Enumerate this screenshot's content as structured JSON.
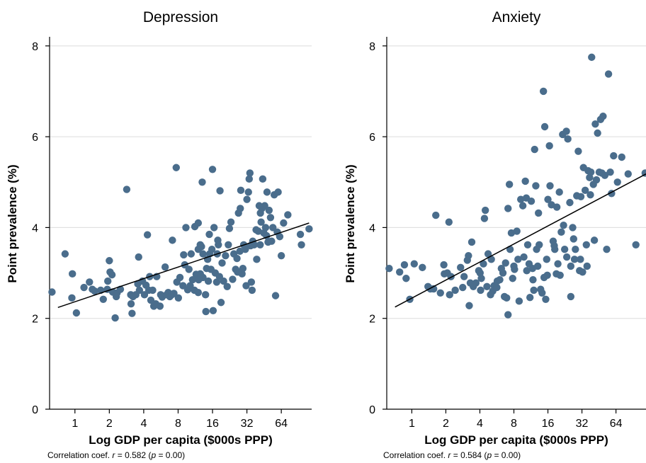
{
  "chart_data": [
    {
      "type": "scatter",
      "title": "Depression",
      "xlabel": "Log GDP per capita ($000s PPP)",
      "ylabel": "Point prevalence (%)",
      "x_scale": "log2",
      "xlim": [
        0.6,
        118
      ],
      "ylim": [
        0,
        8.2
      ],
      "x_ticks": [
        1,
        2,
        4,
        8,
        16,
        32,
        64
      ],
      "x_tick_labels": [
        "1",
        "2",
        "4",
        "8",
        "16",
        "32",
        "64"
      ],
      "y_ticks": [
        0,
        2,
        4,
        6,
        8
      ],
      "y_tick_labels": [
        "0",
        "2",
        "4",
        "6",
        "8"
      ],
      "grid": true,
      "trendline": {
        "x": [
          0.71,
          112
        ],
        "y": [
          2.24,
          4.1
        ]
      },
      "footnote": {
        "prefix": "Correlation coef.",
        "r_symbol": "r",
        "r_value": " = 0.582 (",
        "p_symbol": "p",
        "p_value": " = 0.00)"
      },
      "points": [
        [
          0.63,
          2.58
        ],
        [
          0.82,
          3.42
        ],
        [
          0.95,
          2.98
        ],
        [
          0.94,
          2.45
        ],
        [
          1.03,
          2.12
        ],
        [
          1.2,
          2.68
        ],
        [
          1.34,
          2.8
        ],
        [
          1.42,
          2.64
        ],
        [
          1.49,
          2.6
        ],
        [
          1.68,
          2.62
        ],
        [
          1.77,
          2.42
        ],
        [
          1.92,
          2.64
        ],
        [
          1.94,
          2.82
        ],
        [
          2.0,
          3.27
        ],
        [
          2.03,
          3.02
        ],
        [
          2.11,
          2.96
        ],
        [
          2.14,
          2.58
        ],
        [
          2.25,
          2.01
        ],
        [
          2.3,
          2.48
        ],
        [
          2.34,
          2.56
        ],
        [
          2.5,
          2.64
        ],
        [
          2.84,
          4.84
        ],
        [
          3.08,
          2.52
        ],
        [
          3.1,
          2.32
        ],
        [
          3.16,
          2.11
        ],
        [
          3.22,
          2.48
        ],
        [
          3.41,
          2.52
        ],
        [
          3.55,
          2.76
        ],
        [
          3.61,
          3.35
        ],
        [
          3.67,
          2.62
        ],
        [
          3.9,
          2.82
        ],
        [
          4.06,
          2.52
        ],
        [
          4.19,
          2.73
        ],
        [
          4.31,
          3.84
        ],
        [
          4.43,
          2.62
        ],
        [
          4.51,
          2.92
        ],
        [
          4.62,
          2.4
        ],
        [
          4.79,
          2.62
        ],
        [
          4.9,
          2.27
        ],
        [
          5.1,
          2.32
        ],
        [
          5.2,
          2.92
        ],
        [
          5.55,
          2.27
        ],
        [
          5.63,
          2.52
        ],
        [
          5.8,
          2.47
        ],
        [
          6.16,
          3.13
        ],
        [
          6.35,
          2.52
        ],
        [
          6.55,
          2.57
        ],
        [
          6.77,
          2.48
        ],
        [
          7.04,
          2.52
        ],
        [
          7.13,
          3.72
        ],
        [
          7.35,
          2.55
        ],
        [
          7.7,
          5.32
        ],
        [
          7.8,
          2.8
        ],
        [
          8.04,
          2.45
        ],
        [
          8.3,
          2.9
        ],
        [
          8.82,
          2.72
        ],
        [
          8.95,
          3.4
        ],
        [
          9.14,
          3.18
        ],
        [
          9.36,
          4.0
        ],
        [
          9.95,
          3.08
        ],
        [
          10.2,
          2.72
        ],
        [
          10.4,
          3.42
        ],
        [
          11.2,
          4.02
        ],
        [
          11.5,
          2.97
        ],
        [
          12.0,
          2.57
        ],
        [
          12.0,
          3.52
        ],
        [
          12.0,
          4.1
        ],
        [
          12.5,
          3.62
        ],
        [
          12.5,
          2.98
        ],
        [
          12.8,
          3.58
        ],
        [
          13.2,
          3.42
        ],
        [
          13.0,
          5.0
        ],
        [
          13.9,
          2.52
        ],
        [
          14.2,
          3.1
        ],
        [
          14.5,
          3.3
        ],
        [
          14.7,
          2.82
        ],
        [
          15.1,
          3.42
        ],
        [
          15.5,
          3.08
        ],
        [
          15.8,
          3.52
        ],
        [
          16.0,
          5.28
        ],
        [
          16.5,
          4.0
        ],
        [
          16.9,
          3.0
        ],
        [
          17.4,
          2.8
        ],
        [
          17.6,
          3.42
        ],
        [
          18.0,
          3.62
        ],
        [
          18.4,
          2.92
        ],
        [
          18.6,
          4.81
        ],
        [
          19.4,
          3.22
        ],
        [
          20.0,
          2.82
        ],
        [
          20.8,
          3.38
        ],
        [
          21.5,
          2.7
        ],
        [
          22.0,
          3.62
        ],
        [
          22.5,
          3.98
        ],
        [
          23.2,
          4.12
        ],
        [
          24.0,
          2.86
        ],
        [
          24.6,
          3.42
        ],
        [
          25.5,
          3.08
        ],
        [
          26.2,
          3.32
        ],
        [
          27.0,
          4.32
        ],
        [
          27.8,
          3.48
        ],
        [
          28.0,
          4.42
        ],
        [
          28.3,
          4.82
        ],
        [
          29.0,
          2.98
        ],
        [
          29.5,
          3.1
        ],
        [
          30.0,
          3.62
        ],
        [
          31.0,
          3.52
        ],
        [
          31.5,
          2.72
        ],
        [
          32.0,
          4.62
        ],
        [
          33.0,
          4.78
        ],
        [
          33.5,
          5.07
        ],
        [
          34.0,
          5.2
        ],
        [
          35.0,
          2.8
        ],
        [
          35.5,
          2.62
        ],
        [
          36.0,
          3.7
        ],
        [
          37.0,
          3.62
        ],
        [
          38.5,
          3.95
        ],
        [
          39.0,
          3.3
        ],
        [
          40.2,
          3.92
        ],
        [
          41.0,
          4.48
        ],
        [
          41.8,
          3.62
        ],
        [
          42.6,
          4.12
        ],
        [
          43.3,
          4.42
        ],
        [
          44.0,
          5.07
        ],
        [
          45.0,
          3.88
        ],
        [
          45.8,
          4.48
        ],
        [
          46.6,
          4.0
        ],
        [
          47.5,
          3.82
        ],
        [
          48.0,
          4.78
        ],
        [
          49.0,
          3.68
        ],
        [
          50.0,
          4.38
        ],
        [
          51.5,
          4.22
        ],
        [
          52.6,
          3.7
        ],
        [
          54.0,
          4.0
        ],
        [
          55.5,
          4.72
        ],
        [
          57.0,
          2.5
        ],
        [
          59.0,
          3.9
        ],
        [
          60.0,
          4.78
        ],
        [
          62.0,
          3.8
        ],
        [
          64.0,
          3.38
        ],
        [
          67.0,
          4.1
        ],
        [
          73.0,
          4.28
        ],
        [
          94.0,
          3.85
        ],
        [
          96.0,
          3.62
        ],
        [
          112.0,
          3.97
        ],
        [
          42.0,
          4.32
        ],
        [
          34.5,
          3.6
        ],
        [
          26.5,
          3.02
        ],
        [
          19.0,
          2.35
        ],
        [
          14.0,
          2.15
        ],
        [
          16.2,
          2.17
        ],
        [
          13.2,
          2.9
        ],
        [
          11.1,
          2.62
        ],
        [
          9.7,
          2.63
        ],
        [
          10.7,
          2.85
        ],
        [
          12.1,
          2.85
        ],
        [
          15.0,
          3.85
        ],
        [
          17.8,
          3.72
        ]
      ]
    },
    {
      "type": "scatter",
      "title": "Anxiety",
      "xlabel": "Log GDP per capita ($000s PPP)",
      "ylabel": "Point prevalence (%)",
      "x_scale": "log2",
      "xlim": [
        0.6,
        118
      ],
      "ylim": [
        0,
        8.2
      ],
      "x_ticks": [
        1,
        2,
        4,
        8,
        16,
        32,
        64
      ],
      "x_tick_labels": [
        "1",
        "2",
        "4",
        "8",
        "16",
        "32",
        "64"
      ],
      "y_ticks": [
        0,
        2,
        4,
        6,
        8
      ],
      "y_tick_labels": [
        "0",
        "2",
        "4",
        "6",
        "8"
      ],
      "grid": true,
      "trendline": {
        "x": [
          0.71,
          118
        ],
        "y": [
          2.25,
          5.18
        ]
      },
      "footnote": {
        "prefix": "Correlation coef.",
        "r_symbol": "r",
        "r_value": " = 0.584 (",
        "p_symbol": "p",
        "p_value": " = 0.00)"
      },
      "points": [
        [
          0.63,
          3.1
        ],
        [
          0.78,
          3.02
        ],
        [
          0.86,
          3.18
        ],
        [
          0.89,
          2.88
        ],
        [
          0.96,
          2.42
        ],
        [
          1.05,
          3.2
        ],
        [
          1.24,
          3.12
        ],
        [
          1.39,
          2.7
        ],
        [
          1.46,
          2.65
        ],
        [
          1.56,
          2.65
        ],
        [
          1.63,
          4.27
        ],
        [
          1.79,
          2.56
        ],
        [
          1.92,
          3.18
        ],
        [
          1.94,
          2.98
        ],
        [
          2.06,
          3.0
        ],
        [
          2.13,
          4.12
        ],
        [
          2.16,
          2.52
        ],
        [
          2.22,
          2.92
        ],
        [
          2.42,
          2.62
        ],
        [
          2.7,
          3.12
        ],
        [
          2.82,
          2.68
        ],
        [
          2.9,
          2.92
        ],
        [
          3.1,
          3.28
        ],
        [
          3.17,
          3.38
        ],
        [
          3.22,
          2.28
        ],
        [
          3.29,
          2.78
        ],
        [
          3.39,
          3.68
        ],
        [
          3.5,
          2.7
        ],
        [
          3.69,
          2.78
        ],
        [
          3.91,
          3.05
        ],
        [
          4.02,
          3.0
        ],
        [
          4.06,
          2.62
        ],
        [
          4.12,
          2.88
        ],
        [
          4.3,
          3.2
        ],
        [
          4.39,
          4.2
        ],
        [
          4.47,
          4.38
        ],
        [
          4.62,
          2.7
        ],
        [
          4.73,
          3.42
        ],
        [
          4.97,
          2.52
        ],
        [
          5.05,
          3.3
        ],
        [
          5.2,
          2.6
        ],
        [
          5.35,
          2.72
        ],
        [
          5.65,
          2.68
        ],
        [
          5.7,
          2.82
        ],
        [
          6.0,
          2.85
        ],
        [
          6.2,
          3.1
        ],
        [
          6.4,
          3.0
        ],
        [
          6.6,
          2.48
        ],
        [
          6.75,
          3.22
        ],
        [
          6.9,
          2.45
        ],
        [
          7.1,
          2.08
        ],
        [
          7.1,
          4.42
        ],
        [
          7.3,
          4.95
        ],
        [
          7.4,
          3.52
        ],
        [
          7.6,
          3.88
        ],
        [
          7.8,
          2.88
        ],
        [
          8.0,
          3.15
        ],
        [
          8.1,
          3.08
        ],
        [
          8.5,
          3.92
        ],
        [
          8.7,
          3.3
        ],
        [
          8.9,
          2.38
        ],
        [
          9.2,
          4.62
        ],
        [
          9.6,
          4.48
        ],
        [
          10.1,
          5.02
        ],
        [
          10.3,
          4.65
        ],
        [
          10.6,
          3.62
        ],
        [
          10.9,
          3.2
        ],
        [
          11.1,
          2.46
        ],
        [
          11.4,
          4.58
        ],
        [
          11.7,
          3.1
        ],
        [
          12.0,
          2.62
        ],
        [
          12.2,
          5.72
        ],
        [
          12.5,
          4.92
        ],
        [
          12.7,
          3.52
        ],
        [
          13.0,
          3.15
        ],
        [
          13.4,
          3.62
        ],
        [
          13.8,
          2.64
        ],
        [
          14.2,
          2.56
        ],
        [
          14.6,
          7.0
        ],
        [
          15.0,
          6.22
        ],
        [
          15.3,
          2.42
        ],
        [
          15.6,
          3.3
        ],
        [
          16.0,
          4.62
        ],
        [
          16.5,
          5.8
        ],
        [
          16.7,
          4.92
        ],
        [
          17.2,
          4.5
        ],
        [
          17.8,
          3.7
        ],
        [
          18.4,
          3.52
        ],
        [
          19.0,
          2.98
        ],
        [
          19.6,
          3.2
        ],
        [
          20.2,
          4.78
        ],
        [
          21.0,
          3.9
        ],
        [
          21.6,
          6.05
        ],
        [
          22.5,
          3.52
        ],
        [
          23.3,
          6.12
        ],
        [
          24.0,
          5.95
        ],
        [
          25.0,
          4.55
        ],
        [
          25.5,
          2.48
        ],
        [
          26.5,
          4.0
        ],
        [
          27.5,
          3.3
        ],
        [
          28.0,
          3.52
        ],
        [
          28.8,
          4.7
        ],
        [
          29.7,
          5.68
        ],
        [
          30.5,
          3.05
        ],
        [
          31.3,
          4.68
        ],
        [
          32.4,
          3.02
        ],
        [
          33.0,
          5.32
        ],
        [
          34.2,
          4.82
        ],
        [
          35.0,
          3.62
        ],
        [
          36.3,
          5.25
        ],
        [
          37.4,
          5.1
        ],
        [
          38.4,
          5.22
        ],
        [
          39.0,
          7.75
        ],
        [
          40.4,
          4.95
        ],
        [
          41.2,
          3.72
        ],
        [
          42.0,
          6.28
        ],
        [
          43.0,
          5.05
        ],
        [
          44.0,
          6.08
        ],
        [
          45.5,
          5.22
        ],
        [
          46.8,
          6.38
        ],
        [
          48.0,
          5.2
        ],
        [
          49.2,
          6.45
        ],
        [
          51.0,
          5.15
        ],
        [
          53.0,
          3.52
        ],
        [
          55.0,
          7.38
        ],
        [
          57.0,
          5.22
        ],
        [
          58.5,
          4.75
        ],
        [
          61.0,
          5.58
        ],
        [
          66.0,
          5.0
        ],
        [
          72.0,
          5.55
        ],
        [
          82.0,
          5.18
        ],
        [
          96.0,
          3.62
        ],
        [
          116.0,
          5.2
        ],
        [
          38.0,
          4.72
        ],
        [
          31.0,
          3.3
        ],
        [
          27.0,
          3.75
        ],
        [
          23.5,
          3.35
        ],
        [
          20.5,
          2.95
        ],
        [
          18.2,
          3.6
        ],
        [
          14.8,
          2.9
        ],
        [
          13.2,
          4.32
        ],
        [
          11.8,
          2.85
        ],
        [
          10.4,
          3.05
        ],
        [
          9.8,
          3.35
        ],
        [
          15.8,
          2.95
        ],
        [
          19.2,
          4.45
        ],
        [
          22.0,
          4.05
        ],
        [
          25.5,
          3.15
        ],
        [
          35.5,
          3.15
        ]
      ]
    }
  ]
}
